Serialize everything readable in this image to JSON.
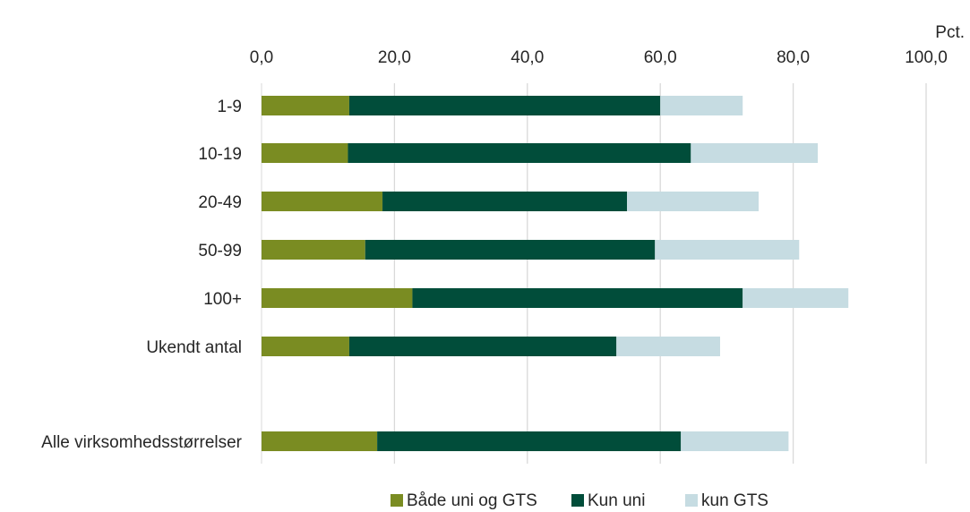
{
  "chart_data": {
    "type": "bar",
    "orientation": "horizontal",
    "stacked": true,
    "title": "",
    "unit_label": "Pct.",
    "xaxis_position": "top",
    "xlim": [
      0,
      100
    ],
    "x_ticks": [
      0,
      20,
      40,
      60,
      80,
      100
    ],
    "x_tick_labels": [
      "0,0",
      "20,0",
      "40,0",
      "60,0",
      "80,0",
      "100,0"
    ],
    "grid": "vertical",
    "legend_position": "bottom",
    "categories": [
      "1-9",
      "10-19",
      "20-49",
      "50-99",
      "100+",
      "Ukendt antal",
      "Alle virksomhedsstørrelser"
    ],
    "series": [
      {
        "name": "Både uni og GTS",
        "color": "#7a8c22",
        "values": [
          13.2,
          13.0,
          18.2,
          15.6,
          22.7,
          13.2,
          17.4
        ]
      },
      {
        "name": "Kun uni",
        "color": "#014d3a",
        "values": [
          46.8,
          51.6,
          36.8,
          43.6,
          49.7,
          40.2,
          45.7
        ]
      },
      {
        "name": "kun GTS",
        "color": "#c6dce2",
        "values": [
          12.4,
          19.1,
          19.8,
          21.7,
          15.9,
          15.6,
          16.2
        ]
      }
    ]
  }
}
